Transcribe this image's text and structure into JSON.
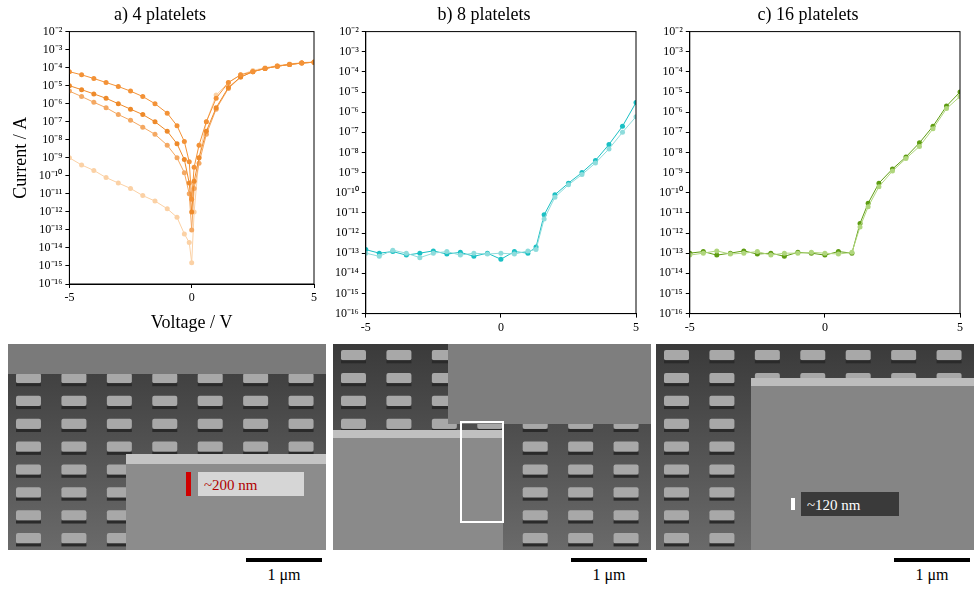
{
  "chart_data": [
    {
      "type": "scatter",
      "title": "a) 4 platelets",
      "x_label": "Voltage / V",
      "y_label": "Current / A",
      "log": "y",
      "grid": false,
      "marker": "circle",
      "line_style": "solid",
      "xlim": [
        -5,
        5
      ],
      "xticks": [
        -5,
        0,
        5
      ],
      "ylim": [
        1e-16,
        0.01
      ],
      "yticks": [
        {
          "value": 1e-16,
          "label": "10⁻¹⁶"
        },
        {
          "value": 1e-15,
          "label": "10⁻¹⁵"
        },
        {
          "value": 1e-14,
          "label": "10⁻¹⁴"
        },
        {
          "value": 1e-13,
          "label": "10⁻¹³"
        },
        {
          "value": 1e-12,
          "label": "10⁻¹²"
        },
        {
          "value": 1e-11,
          "label": "10⁻¹¹"
        },
        {
          "value": 1e-10,
          "label": "10⁻¹⁰"
        },
        {
          "value": 1e-09,
          "label": "10⁻⁹"
        },
        {
          "value": 1e-08,
          "label": "10⁻⁸"
        },
        {
          "value": 1e-07,
          "label": "10⁻⁷"
        },
        {
          "value": 1e-06,
          "label": "10⁻⁶"
        },
        {
          "value": 1e-05,
          "label": "10⁻⁵"
        },
        {
          "value": 0.0001,
          "label": "10⁻⁴"
        },
        {
          "value": 0.001,
          "label": "10⁻³"
        },
        {
          "value": 0.01,
          "label": "10⁻²"
        }
      ],
      "series": [
        {
          "color": "#f39237",
          "x": [
            -5,
            -4.5,
            -4,
            -3.5,
            -3,
            -2.5,
            -2,
            -1.5,
            -1,
            -0.6,
            -0.3,
            -0.1,
            0,
            0.1,
            0.3,
            0.6,
            1,
            1.5,
            2,
            2.5,
            3,
            3.5,
            4,
            4.5,
            5
          ],
          "values": [
            6e-05,
            4e-05,
            2.5e-05,
            1.5e-05,
            9e-06,
            5e-06,
            2.5e-06,
            1e-06,
            3e-07,
            6e-08,
            8e-09,
            6e-10,
            5e-12,
            3e-10,
            5e-09,
            1e-07,
            2e-06,
            1.5e-05,
            4e-05,
            6e-05,
            9e-05,
            0.00012,
            0.00015,
            0.00018,
            0.0002
          ]
        },
        {
          "color": "#ee8a2a",
          "x": [
            -5,
            -4.5,
            -4,
            -3.5,
            -3,
            -2.5,
            -2,
            -1.5,
            -1,
            -0.6,
            -0.3,
            -0.1,
            0,
            0.1,
            0.3,
            0.6,
            1,
            1.5,
            2,
            2.5,
            3,
            3.5,
            4,
            4.5,
            5
          ],
          "values": [
            1e-05,
            6e-06,
            3.5e-06,
            2e-06,
            1e-06,
            5e-07,
            2.5e-07,
            1e-07,
            3e-08,
            6e-09,
            8e-10,
            4e-11,
            1e-12,
            5e-11,
            1e-09,
            3e-08,
            6e-07,
            8e-06,
            3e-05,
            6e-05,
            9e-05,
            0.00012,
            0.00015,
            0.00018,
            0.0002
          ]
        },
        {
          "color": "#f4a862",
          "x": [
            -5,
            -4.5,
            -4,
            -3.5,
            -3,
            -2.5,
            -2,
            -1.5,
            -1,
            -0.6,
            -0.3,
            -0.1,
            0,
            0.1,
            0.3,
            0.6,
            1,
            1.5,
            2,
            2.5,
            3,
            3.5,
            4,
            4.5,
            5
          ],
          "values": [
            5e-06,
            2.5e-06,
            1.2e-06,
            6e-07,
            2.5e-07,
            1.2e-07,
            5e-08,
            2e-08,
            5e-09,
            1e-09,
            1.5e-10,
            1e-11,
            1e-13,
            2e-11,
            5e-10,
            2e-08,
            5e-07,
            7e-06,
            3e-05,
            6e-05,
            9e-05,
            0.00012,
            0.00015,
            0.00018,
            0.0002
          ]
        },
        {
          "color": "#fbd1a5",
          "x": [
            -5,
            -4.5,
            -4,
            -3.5,
            -3,
            -2.5,
            -2,
            -1.5,
            -1,
            -0.6,
            -0.3,
            -0.1,
            0,
            0.1,
            0.3,
            0.6,
            1,
            1.5,
            2,
            2.5,
            3,
            3.5,
            4,
            4.5,
            5
          ],
          "values": [
            1e-09,
            4e-10,
            2e-10,
            8e-11,
            4e-11,
            2e-11,
            8e-12,
            4e-12,
            1.5e-12,
            5e-13,
            6e-14,
            2e-14,
            1.5e-15,
            1e-12,
            1e-09,
            1e-07,
            3e-06,
            1.5e-05,
            4e-05,
            7e-05,
            0.0001,
            0.00013,
            0.00016,
            0.00019,
            0.00021
          ]
        }
      ]
    },
    {
      "type": "scatter",
      "title": "b) 8 platelets",
      "log": "y",
      "grid": false,
      "marker": "circle",
      "line_style": "solid",
      "xlim": [
        -5,
        5
      ],
      "xticks": [
        -5,
        0,
        5
      ],
      "ylim": [
        1e-16,
        0.01
      ],
      "yticks": [
        {
          "value": 1e-16,
          "label": "10⁻¹⁶"
        },
        {
          "value": 1e-15,
          "label": "10⁻¹⁵"
        },
        {
          "value": 1e-14,
          "label": "10⁻¹⁴"
        },
        {
          "value": 1e-13,
          "label": "10⁻¹³"
        },
        {
          "value": 1e-12,
          "label": "10⁻¹²"
        },
        {
          "value": 1e-11,
          "label": "10⁻¹¹"
        },
        {
          "value": 1e-10,
          "label": "10⁻¹⁰"
        },
        {
          "value": 1e-09,
          "label": "10⁻⁹"
        },
        {
          "value": 1e-08,
          "label": "10⁻⁸"
        },
        {
          "value": 1e-07,
          "label": "10⁻⁷"
        },
        {
          "value": 1e-06,
          "label": "10⁻⁶"
        },
        {
          "value": 1e-05,
          "label": "10⁻⁵"
        },
        {
          "value": 0.0001,
          "label": "10⁻⁴"
        },
        {
          "value": 0.001,
          "label": "10⁻³"
        },
        {
          "value": 0.01,
          "label": "10⁻²"
        }
      ],
      "series": [
        {
          "color": "#8edcdc",
          "x": [
            -5,
            -4.5,
            -4,
            -3.5,
            -3,
            -2.5,
            -2,
            -1.5,
            -1,
            -0.5,
            0,
            0.5,
            1,
            1.3,
            1.6,
            2,
            2.5,
            3,
            3.5,
            4,
            4.5,
            5
          ],
          "values": [
            1e-13,
            7e-14,
            1.4e-13,
            1e-13,
            6e-14,
            1e-13,
            1.2e-13,
            8e-14,
            1e-13,
            9e-14,
            1e-13,
            9e-14,
            1.3e-13,
            1.5e-13,
            5e-12,
            6e-11,
            2.5e-10,
            8e-10,
            3e-09,
            1.5e-08,
            1e-07,
            6e-07
          ]
        },
        {
          "color": "#1bc0c4",
          "x": [
            -5,
            -4.5,
            -4,
            -3.5,
            -3,
            -2.5,
            -2,
            -1.5,
            -1,
            -0.5,
            0,
            0.5,
            1,
            1.3,
            1.6,
            2,
            2.5,
            3,
            3.5,
            4,
            4.5,
            5
          ],
          "values": [
            1.5e-13,
            1e-13,
            1.2e-13,
            8e-14,
            1e-13,
            1.3e-13,
            9e-14,
            1.1e-13,
            7e-14,
            1e-13,
            5e-14,
            1.2e-13,
            1e-13,
            2e-13,
            8e-12,
            8e-11,
            3e-10,
            1e-09,
            4e-09,
            2.5e-08,
            2e-07,
            3e-06
          ]
        }
      ]
    },
    {
      "type": "scatter",
      "title": "c) 16 platelets",
      "log": "y",
      "grid": false,
      "marker": "circle",
      "line_style": "solid",
      "xlim": [
        -5,
        5
      ],
      "xticks": [
        -5,
        0,
        5
      ],
      "ylim": [
        1e-16,
        0.01
      ],
      "yticks": [
        {
          "value": 1e-16,
          "label": "10⁻¹⁶"
        },
        {
          "value": 1e-15,
          "label": "10⁻¹⁵"
        },
        {
          "value": 1e-14,
          "label": "10⁻¹⁴"
        },
        {
          "value": 1e-13,
          "label": "10⁻¹³"
        },
        {
          "value": 1e-12,
          "label": "10⁻¹²"
        },
        {
          "value": 1e-11,
          "label": "10⁻¹¹"
        },
        {
          "value": 1e-10,
          "label": "10⁻¹⁰"
        },
        {
          "value": 1e-09,
          "label": "10⁻⁹"
        },
        {
          "value": 1e-08,
          "label": "10⁻⁸"
        },
        {
          "value": 1e-07,
          "label": "10⁻⁷"
        },
        {
          "value": 1e-06,
          "label": "10⁻⁶"
        },
        {
          "value": 1e-05,
          "label": "10⁻⁵"
        },
        {
          "value": 0.0001,
          "label": "10⁻⁴"
        },
        {
          "value": 0.001,
          "label": "10⁻³"
        },
        {
          "value": 0.01,
          "label": "10⁻²"
        }
      ],
      "series": [
        {
          "color": "#b0d67d",
          "x": [
            -5,
            -4.5,
            -4,
            -3.5,
            -3,
            -2.5,
            -2,
            -1.5,
            -1,
            -0.5,
            0,
            0.5,
            1,
            1.3,
            1.6,
            2,
            2.5,
            3,
            3.5,
            4,
            4.5,
            5
          ],
          "values": [
            8e-14,
            1e-13,
            1.3e-13,
            9e-14,
            1e-13,
            1.2e-13,
            8e-14,
            1e-13,
            1e-13,
            1.1e-13,
            1e-13,
            9e-14,
            1.1e-13,
            2e-12,
            2e-11,
            2e-10,
            1.2e-09,
            5e-09,
            2e-08,
            1.5e-07,
            1.5e-06,
            6e-06
          ]
        },
        {
          "color": "#5e9c12",
          "x": [
            -5,
            -4.5,
            -4,
            -3.5,
            -3,
            -2.5,
            -2,
            -1.5,
            -1,
            -0.5,
            0,
            0.5,
            1,
            1.3,
            1.6,
            2,
            2.5,
            3,
            3.5,
            4,
            4.5,
            5
          ],
          "values": [
            1e-13,
            1.2e-13,
            8e-14,
            1e-13,
            1.3e-13,
            9e-14,
            1e-13,
            7e-14,
            1.1e-13,
            1e-13,
            8e-14,
            1.2e-13,
            1e-13,
            3e-12,
            3e-11,
            3e-10,
            1.5e-09,
            6e-09,
            3e-08,
            2e-07,
            2e-06,
            1e-05
          ]
        }
      ]
    }
  ],
  "images": [
    {
      "scale_bar": "1 μm",
      "annotation": "~200 nm"
    },
    {
      "scale_bar": "1 μm"
    },
    {
      "scale_bar": "1 μm",
      "annotation": "~120 nm"
    }
  ]
}
